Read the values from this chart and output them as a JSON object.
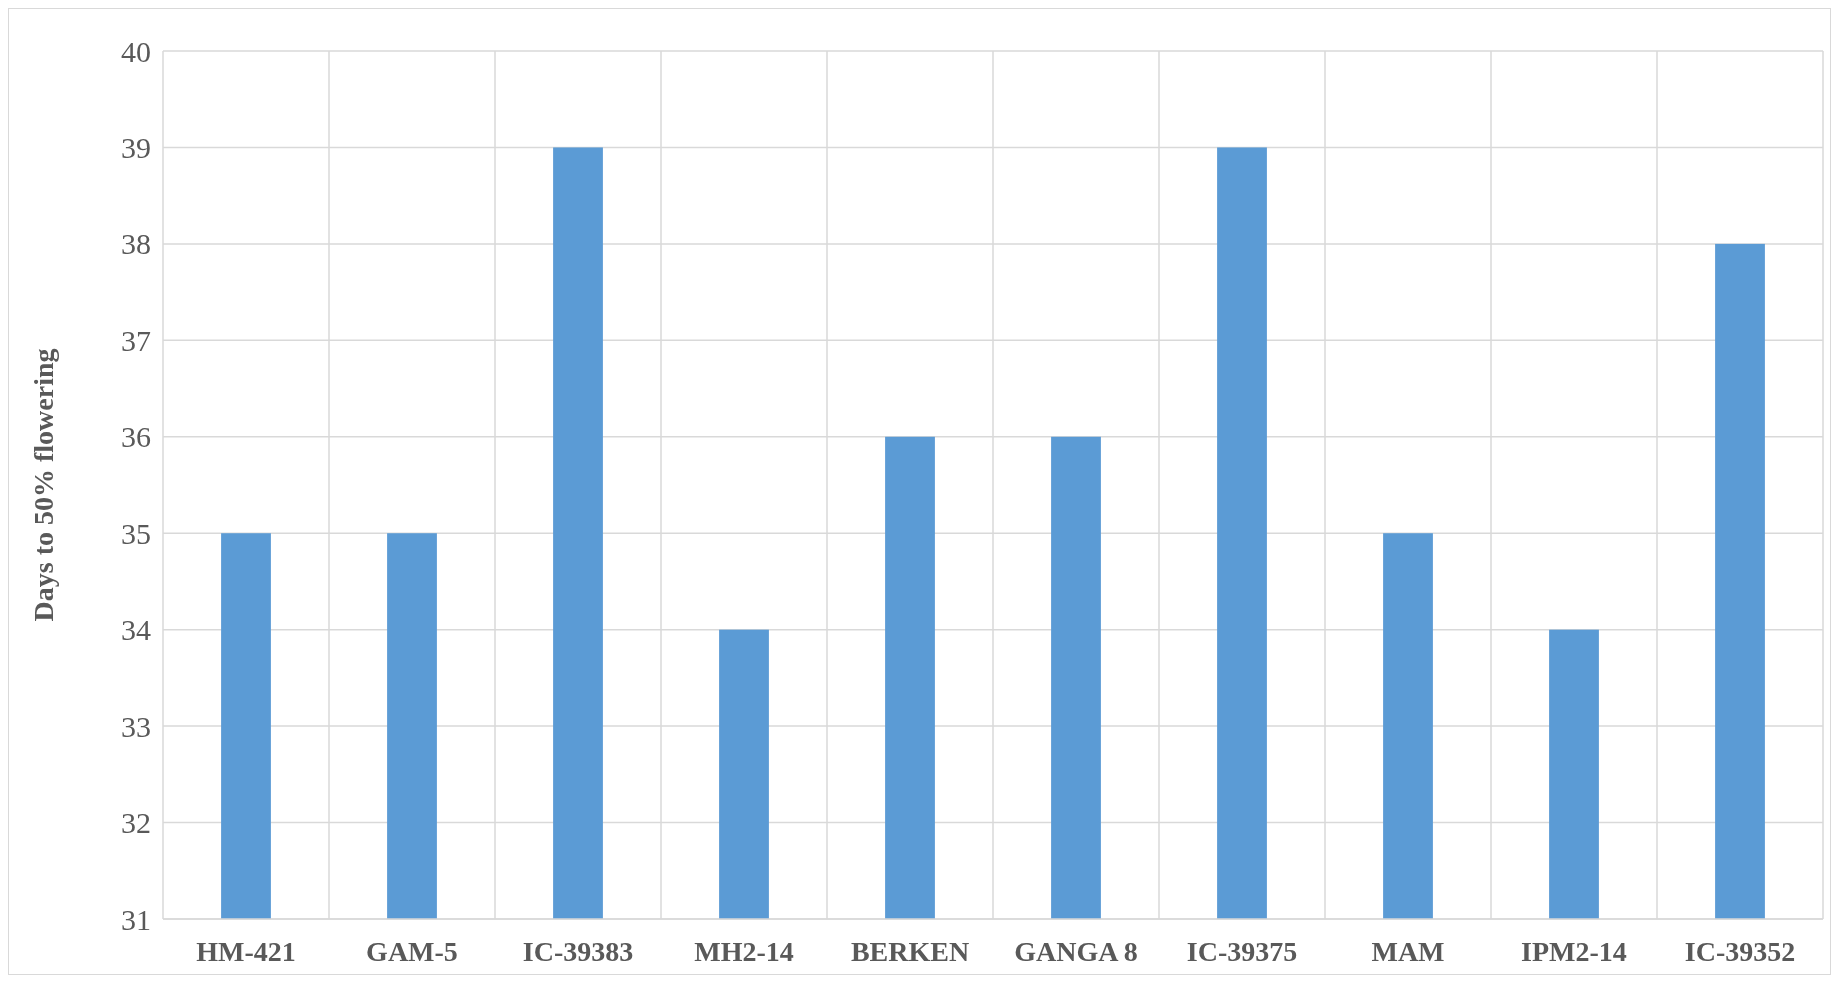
{
  "chart_data": {
    "type": "bar",
    "ylabel": "Days to 50% flowering",
    "categories": [
      "HM-421",
      "GAM-5",
      "IC-39383",
      "MH2-14",
      "BERKEN",
      "GANGA 8",
      "IC-39375",
      "MAM",
      "IPM2-14",
      "IC-39352"
    ],
    "values": [
      35,
      35,
      39,
      34,
      36,
      36,
      39,
      35,
      34,
      38
    ],
    "color": "#5b9bd5",
    "ylim": [
      31,
      40
    ],
    "yticks": [
      31,
      32,
      33,
      34,
      35,
      36,
      37,
      38,
      39,
      40
    ],
    "grid": true
  }
}
